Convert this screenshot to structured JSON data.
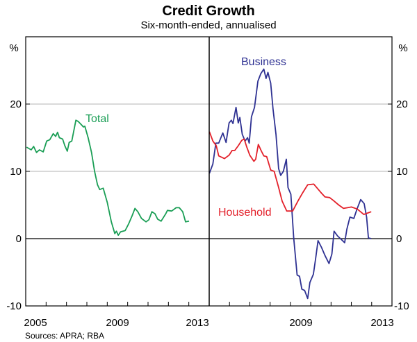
{
  "chart_data": [
    {
      "type": "line",
      "panel": "left",
      "title": "Credit Growth",
      "subtitle": "Six-month-ended, annualised",
      "ylabel": "%",
      "ylim": [
        -10,
        30
      ],
      "yticks": [
        -10,
        0,
        10,
        20
      ],
      "xlim": [
        2005,
        2014
      ],
      "xtick_labels": [
        "2005",
        "2009",
        "2013"
      ],
      "grid": true,
      "series": [
        {
          "name": "Total",
          "color": "#1a9e55",
          "x": [
            2005.04,
            2005.27,
            2005.39,
            2005.53,
            2005.67,
            2005.86,
            2006.03,
            2006.18,
            2006.35,
            2006.47,
            2006.56,
            2006.65,
            2006.81,
            2006.92,
            2007.04,
            2007.13,
            2007.26,
            2007.46,
            2007.58,
            2007.74,
            2007.83,
            2007.9,
            2008.06,
            2008.23,
            2008.38,
            2008.52,
            2008.63,
            2008.8,
            2009.0,
            2009.2,
            2009.37,
            2009.45,
            2009.54,
            2009.65,
            2009.88,
            2010.05,
            2010.22,
            2010.36,
            2010.5,
            2010.68,
            2010.9,
            2011.04,
            2011.19,
            2011.34,
            2011.47,
            2011.64,
            2011.87,
            2011.95,
            2012.16,
            2012.38,
            2012.53,
            2012.7,
            2012.84,
            2013.01
          ],
          "y": [
            13.6,
            13.2,
            13.7,
            12.8,
            13.2,
            12.9,
            14.5,
            14.7,
            15.6,
            15.2,
            15.8,
            15.0,
            14.8,
            13.8,
            13.0,
            14.3,
            14.5,
            17.6,
            17.4,
            16.9,
            16.6,
            16.7,
            15.0,
            12.8,
            10.0,
            8.0,
            7.3,
            7.5,
            5.4,
            2.5,
            0.75,
            1.1,
            0.5,
            1.0,
            1.2,
            2.2,
            3.4,
            4.5,
            4.0,
            3.0,
            2.5,
            2.8,
            4.0,
            3.7,
            2.9,
            2.6,
            3.7,
            4.2,
            4.1,
            4.6,
            4.6,
            4.0,
            2.5,
            2.6
          ]
        }
      ]
    },
    {
      "type": "line",
      "panel": "right",
      "ylabel": "%",
      "ylim": [
        -10,
        30
      ],
      "yticks": [
        -10,
        0,
        10,
        20
      ],
      "xlim": [
        2005,
        2014
      ],
      "xtick_labels": [
        "2009",
        "2013"
      ],
      "grid": true,
      "series": [
        {
          "name": "Business",
          "color": "#2e3192",
          "x": [
            2005.01,
            2005.18,
            2005.33,
            2005.47,
            2005.67,
            2005.83,
            2005.98,
            2006.09,
            2006.17,
            2006.32,
            2006.43,
            2006.51,
            2006.63,
            2006.77,
            2006.89,
            2006.97,
            2007.08,
            2007.23,
            2007.4,
            2007.54,
            2007.69,
            2007.8,
            2007.89,
            2008.03,
            2008.14,
            2008.29,
            2008.42,
            2008.52,
            2008.65,
            2008.8,
            2008.88,
            2009.02,
            2009.16,
            2009.33,
            2009.45,
            2009.56,
            2009.7,
            2009.85,
            2009.96,
            2010.13,
            2010.24,
            2010.36,
            2010.53,
            2010.7,
            2010.9,
            2011.04,
            2011.15,
            2011.32,
            2011.5,
            2011.67,
            2011.78,
            2011.93,
            2012.12,
            2012.29,
            2012.46,
            2012.63,
            2012.75,
            2012.84,
            2012.98
          ],
          "y": [
            9.7,
            11.1,
            14.2,
            14.2,
            15.7,
            14.3,
            17.2,
            17.6,
            17.1,
            19.5,
            17.2,
            18.0,
            15.5,
            14.5,
            15.0,
            14.2,
            18.1,
            19.5,
            23.4,
            24.5,
            25.2,
            23.8,
            24.7,
            23.1,
            19.3,
            15.5,
            10.4,
            9.4,
            10.0,
            11.8,
            7.6,
            6.6,
            0.1,
            -5.4,
            -5.6,
            -7.5,
            -7.7,
            -8.9,
            -6.5,
            -5.3,
            -3.0,
            -0.3,
            -1.3,
            -2.5,
            -3.7,
            -2.3,
            1.1,
            0.4,
            -0.1,
            -0.6,
            1.4,
            3.2,
            3.0,
            4.5,
            5.8,
            5.2,
            3.2,
            0.1,
            0.0
          ]
        },
        {
          "name": "Household",
          "color": "#e3202a",
          "x": [
            2005.01,
            2005.18,
            2005.35,
            2005.47,
            2005.75,
            2005.98,
            2006.13,
            2006.26,
            2006.43,
            2006.6,
            2006.72,
            2006.85,
            2007.0,
            2007.2,
            2007.29,
            2007.42,
            2007.57,
            2007.69,
            2007.83,
            2008.03,
            2008.2,
            2008.42,
            2008.59,
            2008.82,
            2009.11,
            2009.39,
            2009.62,
            2009.85,
            2010.15,
            2010.49,
            2010.7,
            2010.93,
            2011.1,
            2011.38,
            2011.61,
            2012.0,
            2012.29,
            2012.61,
            2012.8,
            2012.98
          ],
          "y": [
            15.9,
            14.5,
            13.8,
            12.3,
            11.9,
            12.4,
            13.1,
            13.1,
            13.8,
            14.6,
            14.8,
            13.6,
            12.4,
            11.5,
            11.8,
            14.0,
            13.0,
            12.3,
            12.2,
            10.2,
            10.0,
            7.6,
            5.6,
            4.1,
            4.1,
            5.7,
            6.9,
            8.0,
            8.1,
            6.9,
            6.2,
            6.1,
            5.7,
            5.0,
            4.5,
            4.7,
            4.4,
            3.6,
            3.8,
            4.0
          ]
        }
      ]
    }
  ],
  "labels": {
    "title": "Credit Growth",
    "subtitle": "Six-month-ended, annualised",
    "unit_left": "%",
    "unit_right": "%",
    "ytick_labels": [
      "20",
      "10",
      "0",
      "-10"
    ],
    "xtick_left": [
      "2005",
      "2009",
      "2013"
    ],
    "xtick_right": [
      "2009",
      "2013"
    ],
    "series_total": "Total",
    "series_business": "Business",
    "series_household": "Household",
    "source": "Sources: APRA; RBA"
  }
}
